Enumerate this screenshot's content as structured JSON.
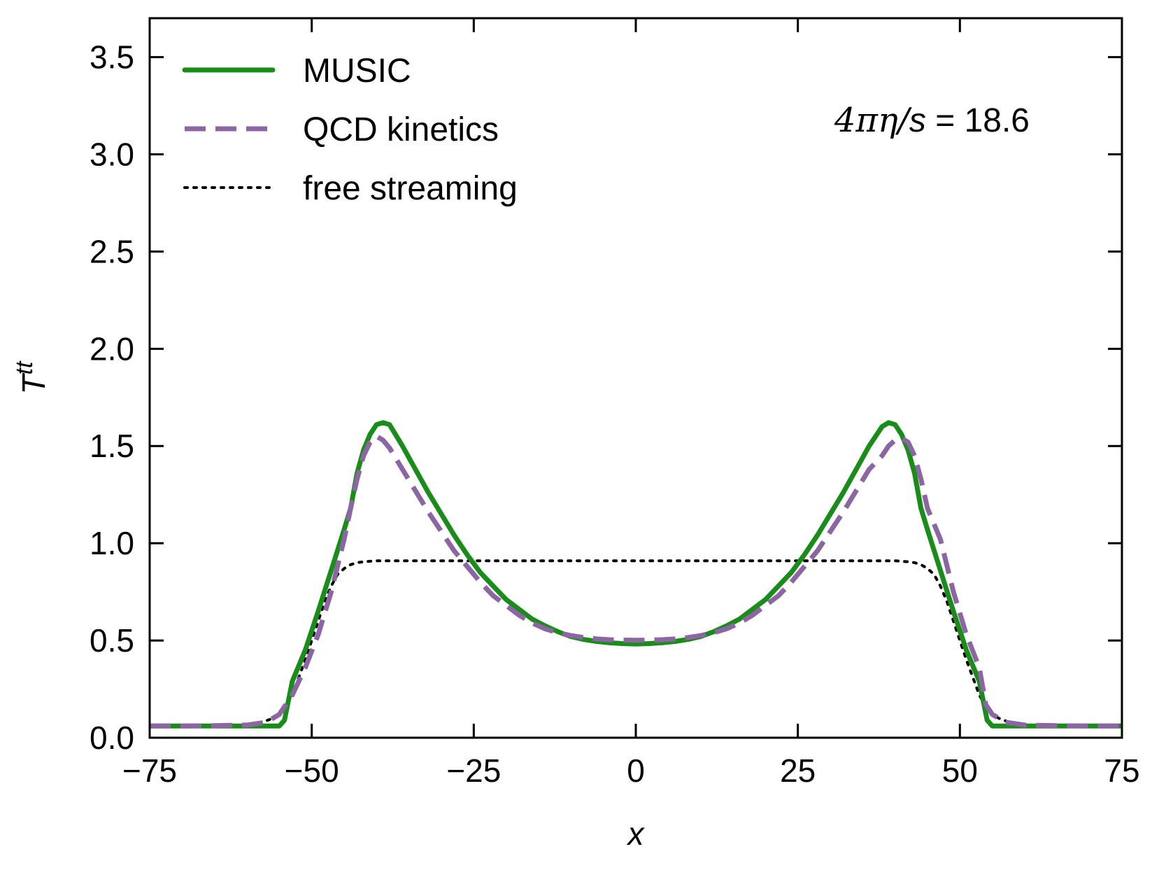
{
  "chart_data": {
    "type": "line",
    "title": "",
    "xlabel": "x",
    "ylabel": {
      "base": "T",
      "superscript": "tt"
    },
    "xlim": [
      -75,
      75
    ],
    "ylim": [
      0,
      3.7
    ],
    "xticks": [
      -75,
      -50,
      -25,
      0,
      25,
      50,
      75
    ],
    "xtick_labels": [
      "−75",
      "−50",
      "−25",
      "0",
      "25",
      "50",
      "75"
    ],
    "yticks": [
      0,
      0.5,
      1,
      1.5,
      2,
      2.5,
      3,
      3.5
    ],
    "ytick_labels": [
      "0.0",
      "0.5",
      "1.0",
      "1.5",
      "2.0",
      "2.5",
      "3.0",
      "3.5"
    ],
    "grid": false,
    "legend_position": "top-left",
    "annotation": {
      "parts": [
        "4",
        "π",
        "η",
        "/",
        "s",
        " = 18.6"
      ],
      "position": "top-right"
    },
    "series": [
      {
        "name": "MUSIC",
        "style": "solid",
        "color": "#1a8c1a",
        "x": [
          -75,
          -70,
          -60,
          -57,
          -55,
          -54.2,
          -53,
          -51,
          -49,
          -47,
          -45,
          -44,
          -43,
          -42,
          -41,
          -40,
          -39,
          -38,
          -36,
          -34,
          -32,
          -30,
          -28,
          -26,
          -24,
          -22,
          -20,
          -18,
          -16,
          -14,
          -12,
          -10,
          -8,
          -6,
          -4,
          -2,
          0,
          2,
          4,
          6,
          8,
          10,
          12,
          14,
          16,
          18,
          20,
          22,
          24,
          26,
          28,
          30,
          32,
          34,
          36,
          38,
          39,
          40,
          41,
          42,
          43,
          44,
          45,
          47,
          49,
          51,
          53,
          54.2,
          55,
          57,
          60,
          70,
          75
        ],
        "y": [
          0.06,
          0.06,
          0.06,
          0.06,
          0.06,
          0.09,
          0.29,
          0.45,
          0.65,
          0.86,
          1.07,
          1.18,
          1.36,
          1.48,
          1.56,
          1.61,
          1.62,
          1.61,
          1.5,
          1.38,
          1.26,
          1.15,
          1.04,
          0.94,
          0.85,
          0.78,
          0.71,
          0.66,
          0.61,
          0.575,
          0.545,
          0.52,
          0.505,
          0.495,
          0.488,
          0.484,
          0.482,
          0.484,
          0.488,
          0.495,
          0.505,
          0.52,
          0.545,
          0.575,
          0.61,
          0.66,
          0.71,
          0.78,
          0.85,
          0.94,
          1.04,
          1.15,
          1.26,
          1.38,
          1.5,
          1.6,
          1.62,
          1.61,
          1.56,
          1.48,
          1.36,
          1.18,
          1.07,
          0.86,
          0.65,
          0.45,
          0.29,
          0.09,
          0.06,
          0.06,
          0.06,
          0.06,
          0.06
        ]
      },
      {
        "name": "QCD kinetics",
        "style": "dashed",
        "color": "#8b66a3",
        "x": [
          -75,
          -70,
          -65,
          -60,
          -57,
          -55,
          -54,
          -53,
          -51,
          -49,
          -47,
          -45,
          -44,
          -43,
          -42,
          -41,
          -40,
          -39,
          -38,
          -36,
          -34,
          -32,
          -30,
          -28,
          -26,
          -24,
          -22,
          -20,
          -18,
          -16,
          -14,
          -12,
          -10,
          -8,
          -6,
          -4,
          -2,
          0,
          2,
          4,
          6,
          8,
          10,
          12,
          14,
          16,
          18,
          20,
          22,
          24,
          26,
          28,
          30,
          32,
          34,
          36,
          38,
          39,
          40,
          41,
          42,
          43,
          44,
          45,
          47,
          49,
          51,
          53,
          54,
          55,
          57,
          60,
          65,
          70,
          75
        ],
        "y": [
          0.06,
          0.06,
          0.062,
          0.065,
          0.08,
          0.12,
          0.17,
          0.22,
          0.36,
          0.53,
          0.75,
          1.02,
          1.18,
          1.33,
          1.45,
          1.52,
          1.55,
          1.53,
          1.49,
          1.38,
          1.27,
          1.16,
          1.06,
          0.96,
          0.88,
          0.8,
          0.73,
          0.68,
          0.63,
          0.59,
          0.56,
          0.54,
          0.525,
          0.515,
          0.508,
          0.504,
          0.502,
          0.501,
          0.502,
          0.504,
          0.508,
          0.515,
          0.525,
          0.54,
          0.56,
          0.59,
          0.63,
          0.68,
          0.73,
          0.8,
          0.88,
          0.96,
          1.06,
          1.16,
          1.27,
          1.38,
          1.45,
          1.5,
          1.53,
          1.54,
          1.52,
          1.45,
          1.33,
          1.18,
          1.02,
          0.75,
          0.53,
          0.36,
          0.17,
          0.12,
          0.08,
          0.065,
          0.062,
          0.06,
          0.06
        ]
      },
      {
        "name": "free streaming",
        "style": "dotted",
        "color": "#000000",
        "x": [
          -75,
          -65,
          -60,
          -58,
          -56,
          -55,
          -54,
          -53,
          -52,
          -51,
          -50,
          -49,
          -48,
          -47,
          -46,
          -45,
          -44,
          -43,
          -42,
          -40,
          -35,
          -25,
          0,
          25,
          35,
          40,
          42,
          43,
          44,
          45,
          46,
          47,
          48,
          49,
          50,
          51,
          52,
          53,
          54,
          55,
          56,
          58,
          60,
          65,
          75
        ],
        "y": [
          0.06,
          0.06,
          0.065,
          0.075,
          0.1,
          0.12,
          0.16,
          0.22,
          0.31,
          0.4,
          0.5,
          0.6,
          0.7,
          0.78,
          0.84,
          0.87,
          0.89,
          0.9,
          0.905,
          0.91,
          0.91,
          0.91,
          0.91,
          0.91,
          0.91,
          0.91,
          0.905,
          0.9,
          0.89,
          0.87,
          0.84,
          0.78,
          0.7,
          0.6,
          0.5,
          0.4,
          0.31,
          0.22,
          0.16,
          0.12,
          0.1,
          0.075,
          0.065,
          0.06,
          0.06
        ]
      }
    ]
  }
}
